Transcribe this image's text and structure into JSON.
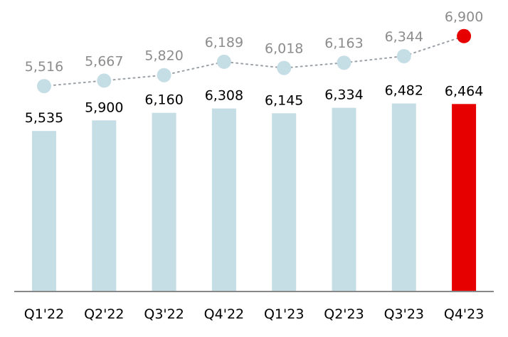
{
  "chart_data": {
    "type": "bar",
    "title": "",
    "xlabel": "",
    "ylabel": "",
    "categories": [
      "Q1'22",
      "Q2'22",
      "Q3'22",
      "Q4'22",
      "Q1'23",
      "Q2'23",
      "Q3'23",
      "Q4'23"
    ],
    "series": [
      {
        "type": "bar",
        "values": [
          5535,
          5900,
          6160,
          6308,
          6145,
          6334,
          6482,
          6464
        ],
        "labels": [
          "5,535",
          "5,900",
          "6,160",
          "6,308",
          "6,145",
          "6,334",
          "6,482",
          "6,464"
        ],
        "color": "#c5dde5",
        "highlight_color": "#e60000",
        "highlight_index": 7
      },
      {
        "type": "line",
        "style": "dotted-with-markers",
        "values": [
          5516,
          5667,
          5820,
          6189,
          6018,
          6163,
          6344,
          6900
        ],
        "labels": [
          "5,516",
          "5,667",
          "5,820",
          "6,189",
          "6,018",
          "6,163",
          "6,344",
          "6,900"
        ],
        "color": "#c5dde5",
        "highlight_color": "#e60000",
        "highlight_index": 7
      }
    ],
    "grid": false,
    "legend": "none"
  }
}
